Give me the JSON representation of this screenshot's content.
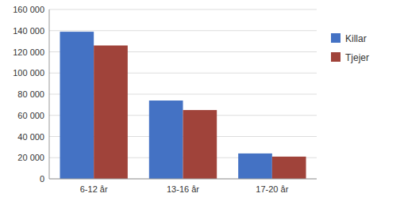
{
  "chart_data": {
    "type": "bar",
    "categories": [
      "6-12 år",
      "13-16 år",
      "17-20 år"
    ],
    "series": [
      {
        "name": "Killar",
        "color": "#4472C4",
        "values": [
          139000,
          74000,
          24000
        ]
      },
      {
        "name": "Tjejer",
        "color": "#A0433A",
        "values": [
          126000,
          65000,
          21000
        ]
      }
    ],
    "ylim": [
      0,
      160000
    ],
    "yticks": [
      0,
      {
        "value": 20000,
        "label": "20 000"
      },
      {
        "value": 40000,
        "label": "40 000"
      },
      {
        "value": 60000,
        "label": "60 000"
      },
      {
        "value": 80000,
        "label": "80 000"
      },
      {
        "value": 100000,
        "label": "100 000"
      },
      {
        "value": 120000,
        "label": "120 000"
      },
      {
        "value": 140000,
        "label": "140 000"
      },
      {
        "value": 160000,
        "label": "160 000"
      }
    ],
    "grid": true,
    "legend": "right"
  }
}
